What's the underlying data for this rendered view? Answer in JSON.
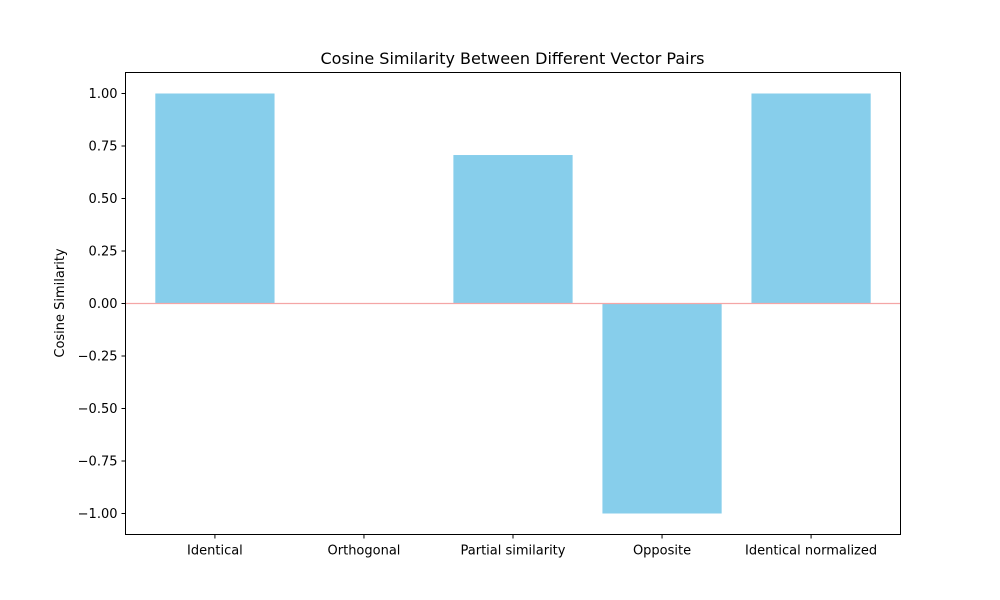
{
  "chart_data": {
    "type": "bar",
    "title": "Cosine Similarity Between Different Vector Pairs",
    "xlabel": "",
    "ylabel": "Cosine Similarity",
    "categories": [
      "Identical",
      "Orthogonal",
      "Partial similarity",
      "Opposite",
      "Identical normalized"
    ],
    "values": [
      1.0,
      0.0,
      0.707,
      -1.0,
      1.0
    ],
    "ylim": [
      -1.1,
      1.1
    ],
    "yticks": [
      1.0,
      0.75,
      0.5,
      0.25,
      0.0,
      -0.25,
      -0.5,
      -0.75,
      -1.0
    ],
    "ytick_labels": [
      "1.00",
      "0.75",
      "0.50",
      "0.25",
      "0.00",
      "−0.25",
      "−0.50",
      "−0.75",
      "−1.00"
    ],
    "grid": false,
    "bar_color": "#87ceeb",
    "reference_line": {
      "y": 0,
      "color": "#f4a6a6"
    }
  }
}
